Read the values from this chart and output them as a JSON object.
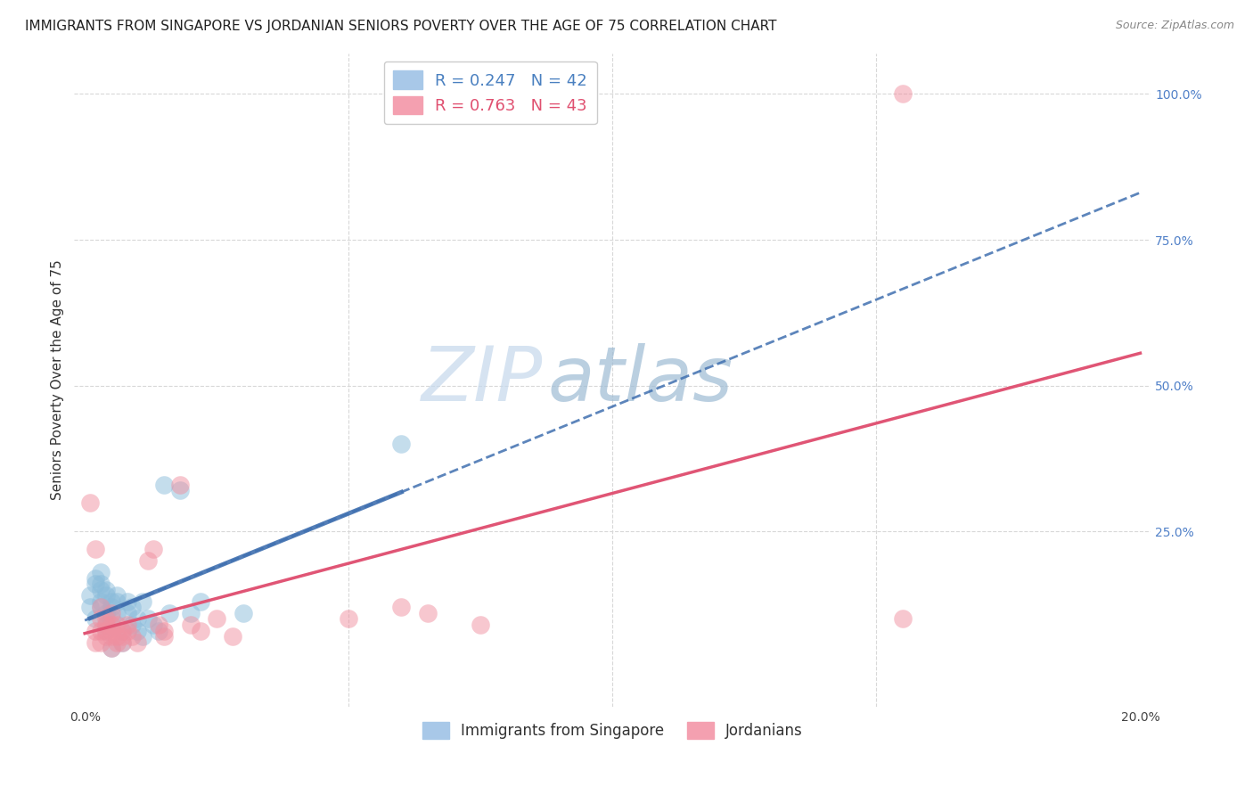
{
  "title": "IMMIGRANTS FROM SINGAPORE VS JORDANIAN SENIORS POVERTY OVER THE AGE OF 75 CORRELATION CHART",
  "source": "Source: ZipAtlas.com",
  "ylabel": "Seniors Poverty Over the Age of 75",
  "xlim": [
    -0.002,
    0.202
  ],
  "ylim": [
    -0.05,
    1.07
  ],
  "xticks": [
    0.0,
    0.05,
    0.1,
    0.15,
    0.2
  ],
  "xticklabels": [
    "0.0%",
    "",
    "",
    "",
    "20.0%"
  ],
  "yticks_right": [
    0.25,
    0.5,
    0.75,
    1.0
  ],
  "yticklabels_right": [
    "25.0%",
    "50.0%",
    "75.0%",
    "100.0%"
  ],
  "legend_labels_bottom": [
    "Immigrants from Singapore",
    "Jordanians"
  ],
  "singapore_color": "#8bbcdb",
  "jordan_color": "#f090a0",
  "singapore_line_color": "#4070b0",
  "jordan_line_color": "#e05575",
  "watermark_zip": "ZIP",
  "watermark_atlas": "atlas",
  "singapore_R": 0.247,
  "singapore_N": 42,
  "jordan_R": 0.763,
  "jordan_N": 43,
  "singapore_points": [
    [
      0.001,
      0.14
    ],
    [
      0.001,
      0.12
    ],
    [
      0.002,
      0.17
    ],
    [
      0.002,
      0.16
    ],
    [
      0.002,
      0.1
    ],
    [
      0.003,
      0.15
    ],
    [
      0.003,
      0.12
    ],
    [
      0.003,
      0.13
    ],
    [
      0.003,
      0.18
    ],
    [
      0.003,
      0.16
    ],
    [
      0.004,
      0.11
    ],
    [
      0.004,
      0.08
    ],
    [
      0.004,
      0.14
    ],
    [
      0.004,
      0.15
    ],
    [
      0.004,
      0.09
    ],
    [
      0.005,
      0.13
    ],
    [
      0.005,
      0.1
    ],
    [
      0.005,
      0.12
    ],
    [
      0.005,
      0.05
    ],
    [
      0.006,
      0.14
    ],
    [
      0.006,
      0.13
    ],
    [
      0.006,
      0.11
    ],
    [
      0.007,
      0.08
    ],
    [
      0.007,
      0.06
    ],
    [
      0.008,
      0.13
    ],
    [
      0.008,
      0.11
    ],
    [
      0.009,
      0.09
    ],
    [
      0.009,
      0.12
    ],
    [
      0.01,
      0.08
    ],
    [
      0.01,
      0.1
    ],
    [
      0.011,
      0.07
    ],
    [
      0.011,
      0.13
    ],
    [
      0.012,
      0.1
    ],
    [
      0.013,
      0.09
    ],
    [
      0.014,
      0.08
    ],
    [
      0.015,
      0.33
    ],
    [
      0.016,
      0.11
    ],
    [
      0.018,
      0.32
    ],
    [
      0.02,
      0.11
    ],
    [
      0.022,
      0.13
    ],
    [
      0.03,
      0.11
    ],
    [
      0.06,
      0.4
    ]
  ],
  "jordan_points": [
    [
      0.001,
      0.3
    ],
    [
      0.002,
      0.22
    ],
    [
      0.002,
      0.08
    ],
    [
      0.002,
      0.06
    ],
    [
      0.003,
      0.1
    ],
    [
      0.003,
      0.12
    ],
    [
      0.003,
      0.08
    ],
    [
      0.003,
      0.06
    ],
    [
      0.004,
      0.09
    ],
    [
      0.004,
      0.07
    ],
    [
      0.004,
      0.1
    ],
    [
      0.004,
      0.08
    ],
    [
      0.005,
      0.07
    ],
    [
      0.005,
      0.05
    ],
    [
      0.005,
      0.09
    ],
    [
      0.005,
      0.11
    ],
    [
      0.005,
      0.08
    ],
    [
      0.006,
      0.07
    ],
    [
      0.006,
      0.09
    ],
    [
      0.006,
      0.06
    ],
    [
      0.007,
      0.08
    ],
    [
      0.007,
      0.07
    ],
    [
      0.007,
      0.06
    ],
    [
      0.008,
      0.09
    ],
    [
      0.008,
      0.08
    ],
    [
      0.009,
      0.07
    ],
    [
      0.01,
      0.06
    ],
    [
      0.012,
      0.2
    ],
    [
      0.013,
      0.22
    ],
    [
      0.014,
      0.09
    ],
    [
      0.015,
      0.08
    ],
    [
      0.015,
      0.07
    ],
    [
      0.018,
      0.33
    ],
    [
      0.02,
      0.09
    ],
    [
      0.022,
      0.08
    ],
    [
      0.025,
      0.1
    ],
    [
      0.028,
      0.07
    ],
    [
      0.05,
      0.1
    ],
    [
      0.06,
      0.12
    ],
    [
      0.065,
      0.11
    ],
    [
      0.075,
      0.09
    ],
    [
      0.155,
      1.0
    ],
    [
      0.155,
      0.1
    ]
  ],
  "grid_color": "#d8d8d8",
  "background_color": "#ffffff",
  "title_fontsize": 11,
  "axis_label_fontsize": 11,
  "tick_fontsize": 10,
  "watermark_fontsize_zip": 62,
  "watermark_fontsize_atlas": 62
}
